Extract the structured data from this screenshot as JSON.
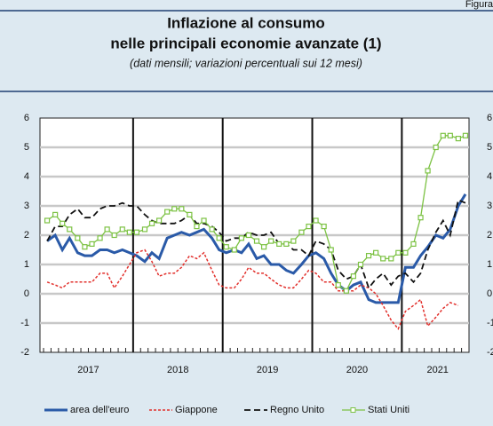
{
  "figure_label": "Figura",
  "chart_data": {
    "type": "line",
    "title": "Inflazione al consumo",
    "title_line2": "nelle principali economie avanzate (1)",
    "subtitle": "(dati mensili; variazioni percentuali sui 12 mesi)",
    "x": [
      2017.04,
      2017.13,
      2017.21,
      2017.29,
      2017.38,
      2017.46,
      2017.54,
      2017.63,
      2017.71,
      2017.79,
      2017.88,
      2017.96,
      2018.04,
      2018.13,
      2018.21,
      2018.29,
      2018.38,
      2018.46,
      2018.54,
      2018.63,
      2018.71,
      2018.79,
      2018.88,
      2018.96,
      2019.04,
      2019.13,
      2019.21,
      2019.29,
      2019.38,
      2019.46,
      2019.54,
      2019.63,
      2019.71,
      2019.79,
      2019.88,
      2019.96,
      2020.04,
      2020.13,
      2020.21,
      2020.29,
      2020.38,
      2020.46,
      2020.54,
      2020.63,
      2020.71,
      2020.79,
      2020.88,
      2020.96,
      2021.04,
      2021.13,
      2021.21,
      2021.29,
      2021.38,
      2021.46,
      2021.54,
      2021.63,
      2021.71
    ],
    "xlim": [
      2016.96,
      2021.75
    ],
    "xticks": [
      {
        "value": 2017.5,
        "label": "2017"
      },
      {
        "value": 2018.5,
        "label": "2018"
      },
      {
        "value": 2019.5,
        "label": "2019"
      },
      {
        "value": 2020.5,
        "label": "2020"
      },
      {
        "value": 2021.4,
        "label": "2021"
      }
    ],
    "year_lines": [
      2018,
      2019,
      2020,
      2021
    ],
    "ylim": [
      -2,
      6
    ],
    "yticks": [
      -2,
      -1,
      0,
      1,
      2,
      3,
      4,
      5,
      6
    ],
    "right_axis": true,
    "grid": true,
    "series": [
      {
        "name": "area dell'euro",
        "color": "#2a5aa8",
        "dash": "solid",
        "width": 3,
        "values": [
          1.8,
          2.0,
          1.5,
          1.9,
          1.4,
          1.3,
          1.3,
          1.5,
          1.5,
          1.4,
          1.5,
          1.4,
          1.3,
          1.1,
          1.4,
          1.2,
          1.9,
          2.0,
          2.1,
          2.0,
          2.1,
          2.2,
          1.9,
          1.5,
          1.4,
          1.5,
          1.4,
          1.7,
          1.2,
          1.3,
          1.0,
          1.0,
          0.8,
          0.7,
          1.0,
          1.3,
          1.4,
          1.2,
          0.7,
          0.3,
          0.1,
          0.3,
          0.4,
          -0.2,
          -0.3,
          -0.3,
          -0.3,
          -0.3,
          0.9,
          0.9,
          1.3,
          1.6,
          2.0,
          1.9,
          2.2,
          3.0,
          3.4
        ]
      },
      {
        "name": "Giappone",
        "color": "#e2302c",
        "dash": "dotted",
        "width": 1.5,
        "values": [
          0.4,
          0.3,
          0.2,
          0.4,
          0.4,
          0.4,
          0.4,
          0.7,
          0.7,
          0.2,
          0.6,
          1.0,
          1.4,
          1.5,
          1.1,
          0.6,
          0.7,
          0.7,
          0.9,
          1.3,
          1.2,
          1.4,
          0.8,
          0.3,
          0.2,
          0.2,
          0.5,
          0.9,
          0.7,
          0.7,
          0.5,
          0.3,
          0.2,
          0.2,
          0.5,
          0.8,
          0.7,
          0.4,
          0.4,
          0.1,
          0.1,
          0.1,
          0.3,
          0.2,
          0.0,
          -0.4,
          -0.9,
          -1.2,
          -0.6,
          -0.4,
          -0.2,
          -1.1,
          -0.8,
          -0.5,
          -0.3,
          -0.4,
          null
        ]
      },
      {
        "name": "Regno Unito",
        "color": "#111111",
        "dash": "dashed",
        "width": 1.8,
        "values": [
          1.8,
          2.3,
          2.3,
          2.7,
          2.9,
          2.6,
          2.6,
          2.9,
          3.0,
          3.0,
          3.1,
          3.0,
          3.0,
          2.7,
          2.5,
          2.4,
          2.4,
          2.4,
          2.5,
          2.7,
          2.4,
          2.4,
          2.3,
          2.1,
          1.8,
          1.9,
          1.9,
          2.1,
          2.0,
          2.0,
          2.1,
          1.7,
          1.7,
          1.5,
          1.5,
          1.3,
          1.8,
          1.7,
          1.5,
          0.8,
          0.5,
          0.6,
          1.0,
          0.2,
          0.5,
          0.7,
          0.3,
          0.6,
          0.7,
          0.4,
          0.7,
          1.5,
          2.1,
          2.5,
          2.0,
          3.2,
          3.1
        ]
      },
      {
        "name": "Stati Uniti",
        "color": "#7cc243",
        "dash": "solid",
        "width": 1.3,
        "marker": "square",
        "values": [
          2.5,
          2.7,
          2.4,
          2.2,
          1.9,
          1.6,
          1.7,
          1.9,
          2.2,
          2.0,
          2.2,
          2.1,
          2.1,
          2.2,
          2.4,
          2.5,
          2.8,
          2.9,
          2.9,
          2.7,
          2.3,
          2.5,
          2.2,
          1.9,
          1.6,
          1.5,
          1.9,
          2.0,
          1.8,
          1.6,
          1.8,
          1.7,
          1.7,
          1.8,
          2.1,
          2.3,
          2.5,
          2.3,
          1.5,
          0.3,
          0.1,
          0.6,
          1.0,
          1.3,
          1.4,
          1.2,
          1.2,
          1.4,
          1.4,
          1.7,
          2.6,
          4.2,
          5.0,
          5.4,
          5.4,
          5.3,
          5.4
        ]
      }
    ]
  }
}
